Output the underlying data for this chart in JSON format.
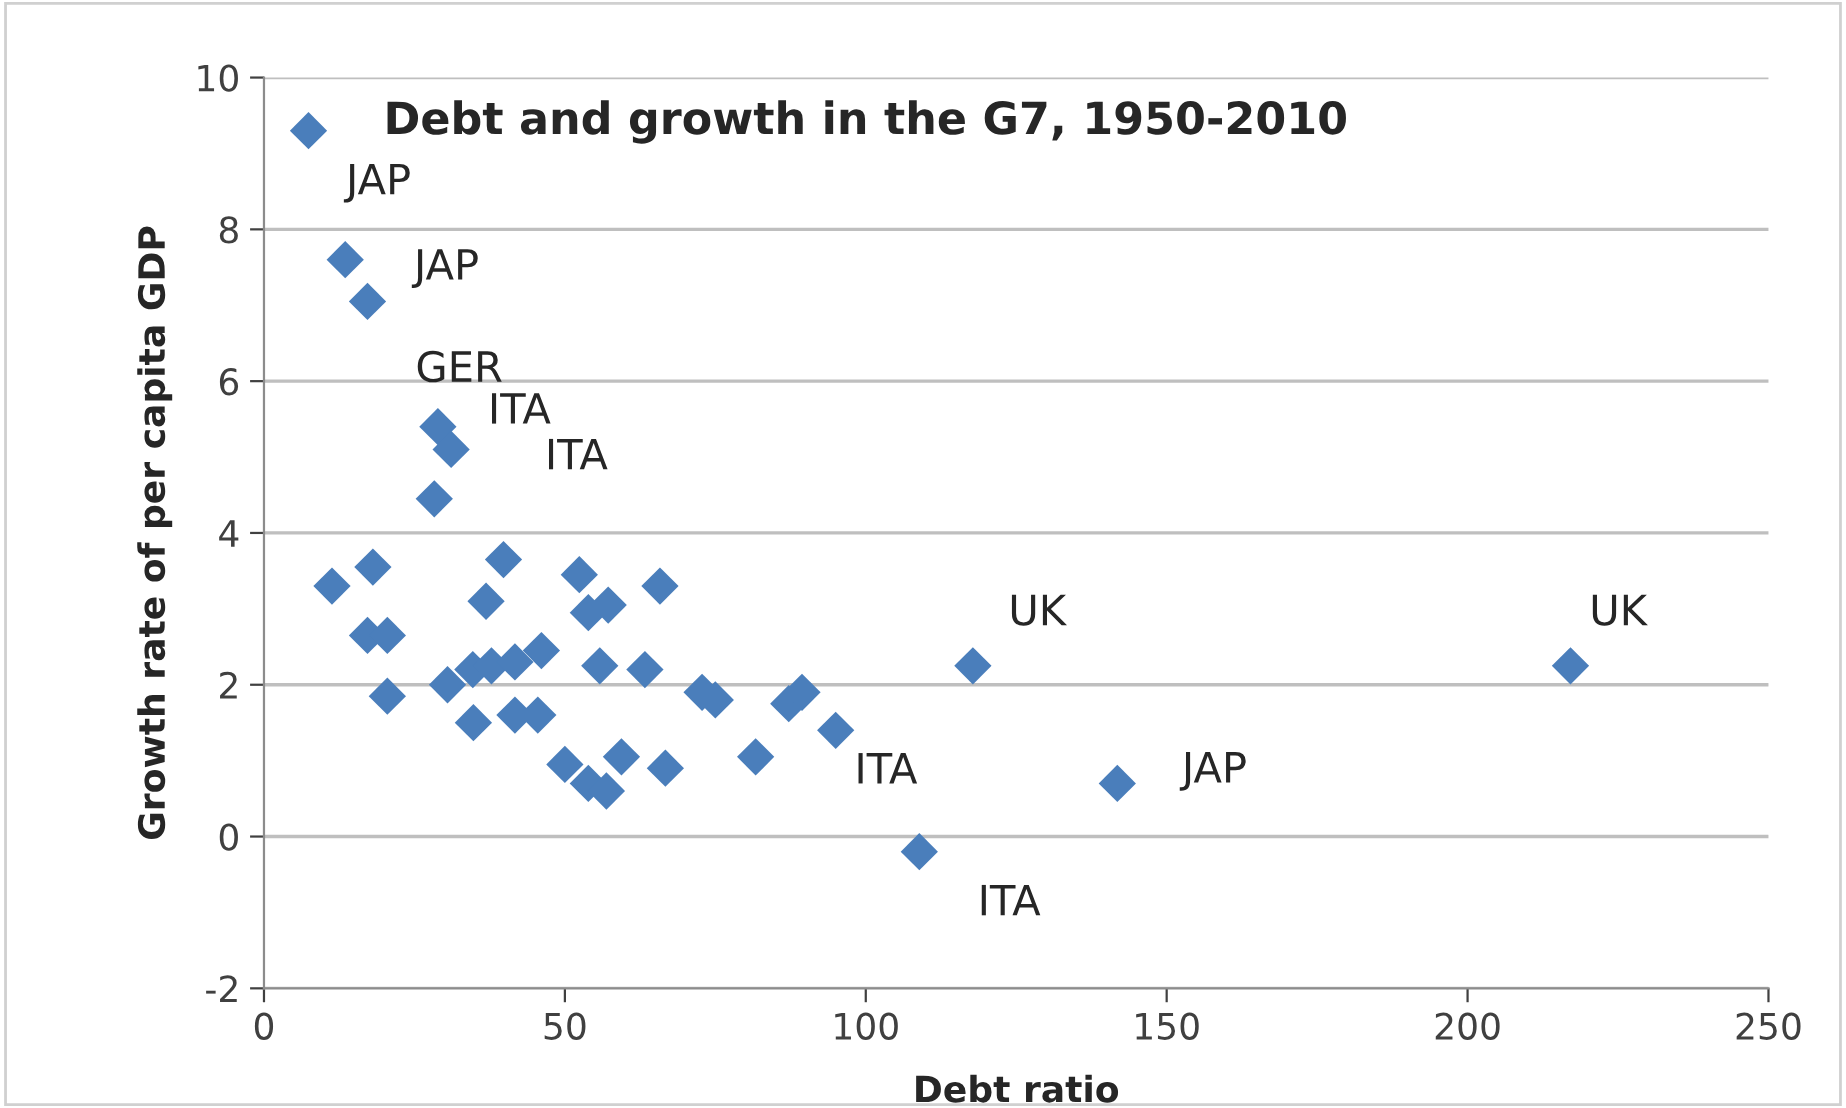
{
  "chart_data": {
    "type": "scatter",
    "title": "Debt and growth in the G7, 1950-2010",
    "xlabel": "Debt ratio",
    "ylabel": "Growth rate of per capita GDP",
    "series": [
      {
        "color": "#4a7ebb",
        "x": [
          7.4,
          13.5,
          17.2,
          28.9,
          31.1,
          28.3,
          11.3,
          18.1,
          17.2,
          20.5,
          20.5,
          39.8,
          36.9,
          30.5,
          34.7,
          37.8,
          41.7,
          46.1,
          34.8,
          41.7,
          45.5,
          52.4,
          53.9,
          57.2,
          65.8,
          55.8,
          63.3,
          50,
          53.9,
          56.9,
          59.4,
          66.7,
          72.8,
          75,
          81.7,
          87.2,
          89.4,
          95,
          117.8,
          108.9,
          141.8,
          217.1
        ],
        "values": [
          9.3,
          7.6,
          7.05,
          5.4,
          5.1,
          4.45,
          3.3,
          3.55,
          2.65,
          2.65,
          1.85,
          3.65,
          3.1,
          2.0,
          2.2,
          2.25,
          2.3,
          2.45,
          1.5,
          1.6,
          1.6,
          3.45,
          2.95,
          3.05,
          3.3,
          2.25,
          2.2,
          0.95,
          0.7,
          0.6,
          1.05,
          0.9,
          1.9,
          1.8,
          1.05,
          1.75,
          1.9,
          1.4,
          2.25,
          -0.2,
          0.7,
          2.25
        ]
      }
    ],
    "annotations": [
      {
        "text": "JAP",
        "x": 7.4,
        "y": 9.3
      },
      {
        "text": "JAP",
        "x": 13.5,
        "y": 7.6
      },
      {
        "text": "GER",
        "x": 17.2,
        "y": 7.05
      },
      {
        "text": "ITA",
        "x": 28.9,
        "y": 5.4
      },
      {
        "text": "ITA",
        "x": 31.1,
        "y": 5.1
      },
      {
        "text": "UK",
        "x": 117.8,
        "y": 2.25
      },
      {
        "text": "UK",
        "x": 217.1,
        "y": 2.25
      },
      {
        "text": "ITA",
        "x": 95,
        "y": 1.4
      },
      {
        "text": "ITA",
        "x": 108.9,
        "y": -0.2
      },
      {
        "text": "JAP",
        "x": 141.8,
        "y": 0.7
      }
    ],
    "xlim": [
      0,
      250
    ],
    "xticks": [
      0,
      50,
      100,
      150,
      200,
      250
    ],
    "ylim": [
      -2,
      10
    ],
    "yticks": [
      -2,
      0,
      2,
      4,
      6,
      8,
      10
    ],
    "grid": "y",
    "marker": "diamond"
  }
}
